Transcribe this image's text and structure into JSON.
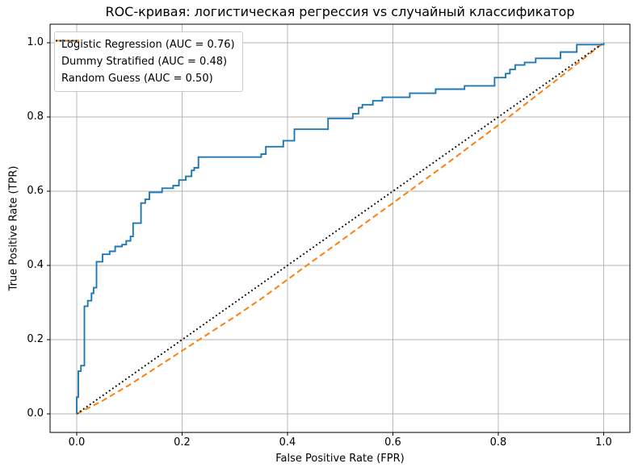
{
  "title": "ROC-кривая: логистическая регрессия vs случайный классификатор",
  "axes": {
    "xlabel": "False Positive Rate (FPR)",
    "ylabel": "True Positive Rate (TPR)"
  },
  "colors": {
    "logistic": "#1f77b4",
    "dummy": "#ff7f0e",
    "random": "#000000",
    "grid": "#b0b0b0",
    "spine": "#000000",
    "legend_border": "#cccccc",
    "background": "#ffffff"
  },
  "chart_data": {
    "type": "line",
    "title": "ROC-кривая: логистическая регрессия vs случайный классификатор",
    "xlabel": "False Positive Rate (FPR)",
    "ylabel": "True Positive Rate (TPR)",
    "xlim": [
      -0.05,
      1.05
    ],
    "ylim": [
      -0.05,
      1.05
    ],
    "xticks": [
      0.0,
      0.2,
      0.4,
      0.6,
      0.8,
      1.0
    ],
    "yticks": [
      0.0,
      0.2,
      0.4,
      0.6,
      0.8,
      1.0
    ],
    "xtick_labels": [
      "0.0",
      "0.2",
      "0.4",
      "0.6",
      "0.8",
      "1.0"
    ],
    "ytick_labels": [
      "0.0",
      "0.2",
      "0.4",
      "0.6",
      "0.8",
      "1.0"
    ],
    "grid": true,
    "legend_position": "upper left",
    "series": [
      {
        "name": "Logistic Regression (AUC = 0.76)",
        "auc": 0.76,
        "color": "#1f77b4",
        "line_style": "solid",
        "line_width": 1.9,
        "points": [
          [
            0.0,
            0.0
          ],
          [
            0.0,
            0.045
          ],
          [
            0.003,
            0.045
          ],
          [
            0.003,
            0.115
          ],
          [
            0.008,
            0.115
          ],
          [
            0.008,
            0.13
          ],
          [
            0.0145,
            0.13
          ],
          [
            0.0145,
            0.29
          ],
          [
            0.021,
            0.29
          ],
          [
            0.021,
            0.305
          ],
          [
            0.028,
            0.305
          ],
          [
            0.028,
            0.325
          ],
          [
            0.032,
            0.325
          ],
          [
            0.032,
            0.34
          ],
          [
            0.0375,
            0.34
          ],
          [
            0.0375,
            0.41
          ],
          [
            0.049,
            0.41
          ],
          [
            0.049,
            0.43
          ],
          [
            0.0625,
            0.43
          ],
          [
            0.0625,
            0.438
          ],
          [
            0.073,
            0.438
          ],
          [
            0.073,
            0.451
          ],
          [
            0.086,
            0.451
          ],
          [
            0.086,
            0.456
          ],
          [
            0.094,
            0.456
          ],
          [
            0.094,
            0.466
          ],
          [
            0.102,
            0.466
          ],
          [
            0.102,
            0.478
          ],
          [
            0.107,
            0.478
          ],
          [
            0.107,
            0.514
          ],
          [
            0.122,
            0.514
          ],
          [
            0.122,
            0.568
          ],
          [
            0.13,
            0.568
          ],
          [
            0.13,
            0.578
          ],
          [
            0.138,
            0.578
          ],
          [
            0.138,
            0.597
          ],
          [
            0.162,
            0.597
          ],
          [
            0.162,
            0.608
          ],
          [
            0.183,
            0.608
          ],
          [
            0.183,
            0.615
          ],
          [
            0.194,
            0.615
          ],
          [
            0.194,
            0.63
          ],
          [
            0.207,
            0.63
          ],
          [
            0.207,
            0.64
          ],
          [
            0.218,
            0.64
          ],
          [
            0.218,
            0.656
          ],
          [
            0.223,
            0.656
          ],
          [
            0.223,
            0.663
          ],
          [
            0.231,
            0.663
          ],
          [
            0.231,
            0.692
          ],
          [
            0.35,
            0.692
          ],
          [
            0.35,
            0.7
          ],
          [
            0.359,
            0.7
          ],
          [
            0.359,
            0.72
          ],
          [
            0.392,
            0.72
          ],
          [
            0.392,
            0.736
          ],
          [
            0.413,
            0.736
          ],
          [
            0.413,
            0.767
          ],
          [
            0.477,
            0.767
          ],
          [
            0.477,
            0.796
          ],
          [
            0.524,
            0.796
          ],
          [
            0.524,
            0.809
          ],
          [
            0.535,
            0.809
          ],
          [
            0.535,
            0.825
          ],
          [
            0.542,
            0.825
          ],
          [
            0.542,
            0.833
          ],
          [
            0.562,
            0.833
          ],
          [
            0.562,
            0.844
          ],
          [
            0.58,
            0.844
          ],
          [
            0.58,
            0.853
          ],
          [
            0.632,
            0.853
          ],
          [
            0.632,
            0.864
          ],
          [
            0.681,
            0.864
          ],
          [
            0.681,
            0.875
          ],
          [
            0.736,
            0.875
          ],
          [
            0.736,
            0.884
          ],
          [
            0.793,
            0.884
          ],
          [
            0.793,
            0.906
          ],
          [
            0.814,
            0.906
          ],
          [
            0.814,
            0.917
          ],
          [
            0.822,
            0.917
          ],
          [
            0.822,
            0.928
          ],
          [
            0.832,
            0.928
          ],
          [
            0.832,
            0.94
          ],
          [
            0.85,
            0.94
          ],
          [
            0.85,
            0.947
          ],
          [
            0.871,
            0.947
          ],
          [
            0.871,
            0.958
          ],
          [
            0.918,
            0.958
          ],
          [
            0.918,
            0.975
          ],
          [
            0.949,
            0.975
          ],
          [
            0.949,
            0.995
          ],
          [
            1.0,
            0.995
          ],
          [
            1.0,
            1.0
          ]
        ]
      },
      {
        "name": "Dummy Stratified (AUC = 0.48)",
        "auc": 0.48,
        "color": "#ff7f0e",
        "line_style": "dashed",
        "line_width": 2.0,
        "points": [
          [
            0.0,
            0.0
          ],
          [
            0.05,
            0.036
          ],
          [
            0.1,
            0.078
          ],
          [
            0.15,
            0.124
          ],
          [
            0.2,
            0.17
          ],
          [
            0.25,
            0.216
          ],
          [
            0.3,
            0.262
          ],
          [
            0.35,
            0.31
          ],
          [
            0.4,
            0.362
          ],
          [
            0.45,
            0.414
          ],
          [
            0.5,
            0.465
          ],
          [
            0.55,
            0.517
          ],
          [
            0.6,
            0.568
          ],
          [
            0.65,
            0.62
          ],
          [
            0.7,
            0.672
          ],
          [
            0.75,
            0.725
          ],
          [
            0.8,
            0.778
          ],
          [
            0.85,
            0.833
          ],
          [
            0.9,
            0.888
          ],
          [
            0.95,
            0.944
          ],
          [
            1.0,
            1.0
          ]
        ]
      },
      {
        "name": "Random Guess (AUC = 0.50)",
        "auc": 0.5,
        "color": "#000000",
        "line_style": "dotted",
        "line_width": 1.9,
        "points": [
          [
            0.0,
            0.0
          ],
          [
            1.0,
            1.0
          ]
        ]
      }
    ]
  }
}
